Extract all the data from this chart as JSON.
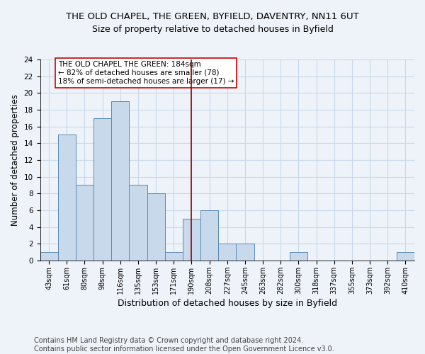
{
  "title": "THE OLD CHAPEL, THE GREEN, BYFIELD, DAVENTRY, NN11 6UT",
  "subtitle": "Size of property relative to detached houses in Byfield",
  "xlabel": "Distribution of detached houses by size in Byfield",
  "ylabel": "Number of detached properties",
  "footer_line1": "Contains HM Land Registry data © Crown copyright and database right 2024.",
  "footer_line2": "Contains public sector information licensed under the Open Government Licence v3.0.",
  "categories": [
    "43sqm",
    "61sqm",
    "80sqm",
    "98sqm",
    "116sqm",
    "135sqm",
    "153sqm",
    "171sqm",
    "190sqm",
    "208sqm",
    "227sqm",
    "245sqm",
    "263sqm",
    "282sqm",
    "300sqm",
    "318sqm",
    "337sqm",
    "355sqm",
    "373sqm",
    "392sqm",
    "410sqm"
  ],
  "values": [
    1,
    15,
    9,
    17,
    19,
    9,
    8,
    1,
    5,
    6,
    2,
    2,
    0,
    0,
    1,
    0,
    0,
    0,
    0,
    0,
    1
  ],
  "bar_color": "#c9d9ec",
  "bar_edgecolor": "#5b8ab5",
  "vline_x": 8,
  "vline_color": "#8b0000",
  "annotation_text": "THE OLD CHAPEL THE GREEN: 184sqm\n← 82% of detached houses are smaller (78)\n18% of semi-detached houses are larger (17) →",
  "annotation_box_edgecolor": "#cc0000",
  "annotation_box_facecolor": "#ffffff",
  "ylim": [
    0,
    24
  ],
  "yticks": [
    0,
    2,
    4,
    6,
    8,
    10,
    12,
    14,
    16,
    18,
    20,
    22,
    24
  ],
  "grid_color": "#c8d8ea",
  "background_color": "#eef3f9",
  "title_fontsize": 9.5,
  "subtitle_fontsize": 9,
  "tick_fontsize": 7,
  "ylabel_fontsize": 8.5,
  "xlabel_fontsize": 9,
  "footer_fontsize": 7,
  "annotation_fontsize": 7.5
}
